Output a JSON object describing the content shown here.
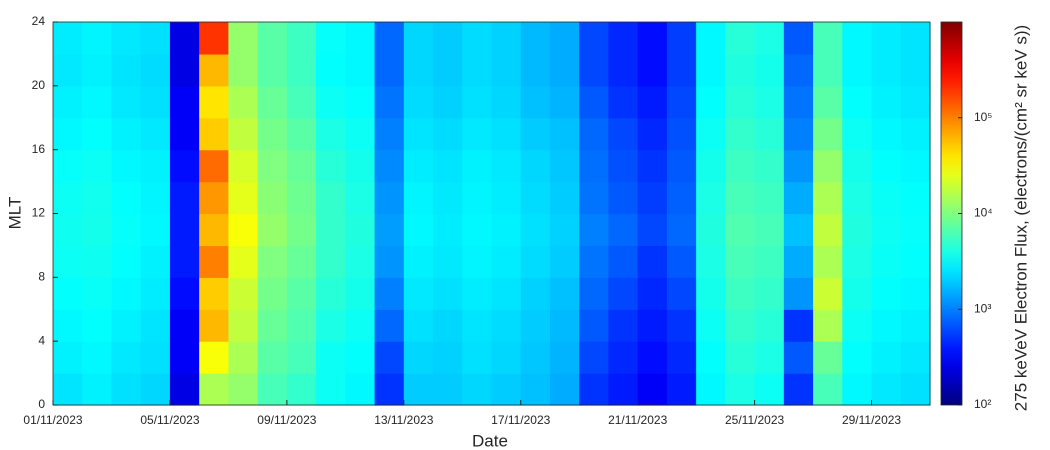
{
  "chart_data": {
    "type": "heatmap",
    "x_label": "Date",
    "y_label": "MLT",
    "colorbar_label": "275 keVeV Electron Flux, (electrons/(cm² sr keV s))",
    "colormap": "jet",
    "colorscale": "log",
    "clim": [
      100,
      1000000
    ],
    "cticks": [
      {
        "value": 100,
        "label": "10²"
      },
      {
        "value": 1000,
        "label": "10³"
      },
      {
        "value": 10000,
        "label": "10⁴"
      },
      {
        "value": 100000,
        "label": "10⁵"
      }
    ],
    "x": [
      "01/11/2023",
      "02/11/2023",
      "03/11/2023",
      "04/11/2023",
      "05/11/2023",
      "06/11/2023",
      "07/11/2023",
      "08/11/2023",
      "09/11/2023",
      "10/11/2023",
      "11/11/2023",
      "12/11/2023",
      "13/11/2023",
      "14/11/2023",
      "15/11/2023",
      "16/11/2023",
      "17/11/2023",
      "18/11/2023",
      "19/11/2023",
      "20/11/2023",
      "21/11/2023",
      "22/11/2023",
      "23/11/2023",
      "24/11/2023",
      "25/11/2023",
      "26/11/2023",
      "27/11/2023",
      "28/11/2023",
      "29/11/2023",
      "30/11/2023"
    ],
    "xticks": [
      "01/11/2023",
      "05/11/2023",
      "09/11/2023",
      "13/11/2023",
      "17/11/2023",
      "21/11/2023",
      "25/11/2023",
      "29/11/2023"
    ],
    "y": [
      0,
      2,
      4,
      6,
      8,
      10,
      12,
      14,
      16,
      18,
      20,
      22
    ],
    "ylim": [
      0,
      24
    ],
    "yticks": [
      0,
      4,
      8,
      12,
      16,
      20,
      24
    ],
    "z": [
      [
        2500,
        2800,
        2400,
        2200,
        250,
        15000,
        12000,
        6000,
        5000,
        3500,
        3000,
        500,
        2000,
        2000,
        2200,
        2000,
        1800,
        1500,
        500,
        400,
        300,
        400,
        3000,
        4000,
        3500,
        500,
        6000,
        3000,
        2600,
        2400
      ],
      [
        2800,
        3000,
        2600,
        2400,
        300,
        30000,
        15000,
        7000,
        6000,
        3500,
        3200,
        600,
        2200,
        2100,
        2400,
        2200,
        1900,
        1600,
        600,
        450,
        350,
        450,
        3200,
        4500,
        4000,
        700,
        8000,
        3200,
        2800,
        2600
      ],
      [
        3000,
        3200,
        2800,
        2500,
        300,
        60000,
        18000,
        8000,
        6500,
        4000,
        3500,
        800,
        2400,
        2200,
        2500,
        2300,
        2000,
        1700,
        700,
        500,
        400,
        500,
        3500,
        5000,
        4500,
        500,
        15000,
        3500,
        3000,
        2800
      ],
      [
        3200,
        3400,
        3000,
        2700,
        350,
        50000,
        20000,
        9000,
        7000,
        4500,
        3800,
        1000,
        2600,
        2400,
        2700,
        2500,
        2100,
        1800,
        800,
        600,
        450,
        600,
        3800,
        5500,
        5000,
        1200,
        20000,
        3800,
        3200,
        3000
      ],
      [
        3500,
        3600,
        3200,
        2800,
        400,
        100000,
        25000,
        10000,
        8000,
        5000,
        4000,
        1200,
        2800,
        2600,
        2900,
        2700,
        2300,
        2000,
        900,
        700,
        500,
        700,
        4000,
        6000,
        5500,
        1500,
        15000,
        4000,
        3400,
        3200
      ],
      [
        3600,
        3800,
        3300,
        3000,
        400,
        60000,
        30000,
        12000,
        9000,
        5000,
        4200,
        1300,
        3000,
        2700,
        3000,
        2800,
        2400,
        2100,
        1000,
        800,
        600,
        800,
        4200,
        6500,
        6000,
        1800,
        18000,
        4200,
        3500,
        3300
      ],
      [
        3500,
        3700,
        3200,
        2900,
        400,
        80000,
        25000,
        11000,
        8500,
        5000,
        4000,
        1200,
        2900,
        2600,
        2900,
        2700,
        2300,
        2000,
        900,
        700,
        550,
        750,
        4000,
        6000,
        5500,
        1500,
        15000,
        4000,
        3400,
        3200
      ],
      [
        3300,
        3500,
        3000,
        2800,
        350,
        120000,
        22000,
        10000,
        8000,
        4500,
        3800,
        1100,
        2700,
        2500,
        2800,
        2600,
        2200,
        1900,
        850,
        650,
        500,
        700,
        3800,
        5500,
        5000,
        1200,
        12000,
        3800,
        3200,
        3000
      ],
      [
        3000,
        3200,
        2800,
        2600,
        300,
        50000,
        18000,
        9000,
        7000,
        4000,
        3500,
        1000,
        2500,
        2300,
        2600,
        2400,
        2000,
        1800,
        800,
        600,
        450,
        650,
        3500,
        5000,
        4500,
        1000,
        9000,
        3500,
        3000,
        2800
      ],
      [
        2800,
        3000,
        2600,
        2400,
        300,
        40000,
        15000,
        8000,
        6000,
        3500,
        3200,
        900,
        2300,
        2100,
        2400,
        2200,
        1800,
        1600,
        700,
        500,
        400,
        600,
        3200,
        4500,
        4000,
        900,
        7000,
        3200,
        2800,
        2600
      ],
      [
        2600,
        2800,
        2500,
        2300,
        250,
        60000,
        12000,
        7000,
        5500,
        3200,
        3000,
        800,
        2200,
        2000,
        2300,
        2100,
        1700,
        1500,
        600,
        450,
        350,
        550,
        3000,
        4200,
        3800,
        800,
        6000,
        3000,
        2700,
        2500
      ],
      [
        2700,
        2900,
        2600,
        2400,
        250,
        200000,
        12000,
        7000,
        5500,
        3300,
        3000,
        800,
        2200,
        2000,
        2300,
        2100,
        1700,
        1500,
        600,
        450,
        350,
        550,
        3000,
        4500,
        4000,
        700,
        6000,
        3000,
        2700,
        2500
      ]
    ]
  }
}
